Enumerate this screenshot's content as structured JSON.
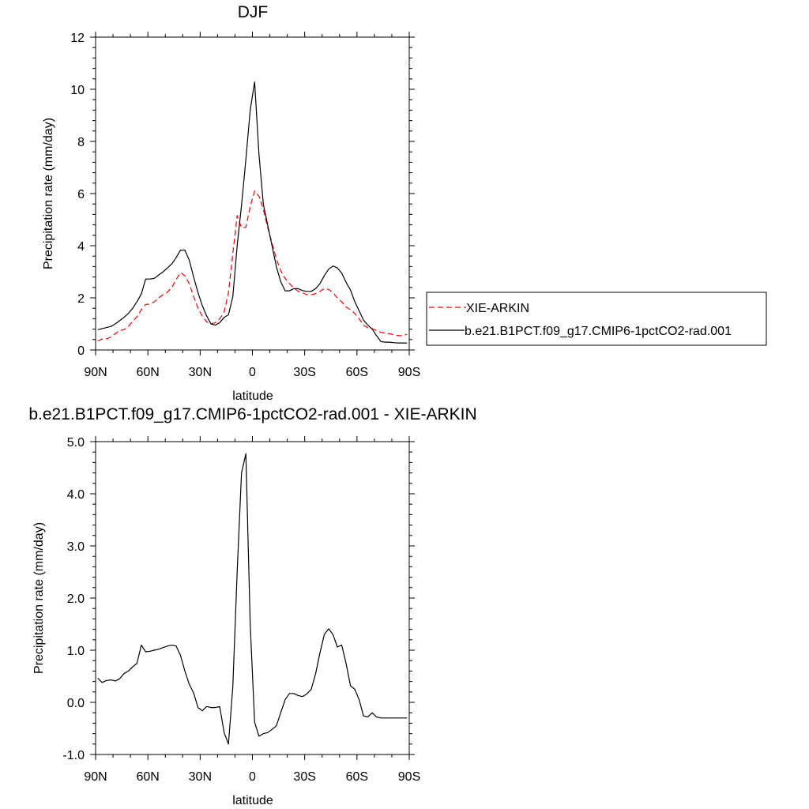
{
  "chart_data": [
    {
      "type": "line",
      "title": "DJF",
      "xlabel": "latitude",
      "ylabel": "Precipitation rate (mm/day)",
      "xlim": [
        90,
        -90
      ],
      "ylim": [
        0,
        12
      ],
      "x_ticks": [
        90,
        60,
        30,
        0,
        -30,
        -60,
        -90
      ],
      "x_tick_labels": [
        "90N",
        "60N",
        "30N",
        "0",
        "30S",
        "60S",
        "90S"
      ],
      "y_ticks": [
        0,
        2,
        4,
        6,
        8,
        10,
        12
      ],
      "y_tick_labels": [
        "0",
        "2",
        "4",
        "6",
        "8",
        "10",
        "12"
      ],
      "grid": false,
      "legend_position": "outside-right",
      "series": [
        {
          "name": "XIE-ARKIN",
          "color": "#ff0000",
          "dash": "dashed",
          "x": [
            88.75,
            86.25,
            83.75,
            81.25,
            78.75,
            76.25,
            73.75,
            71.25,
            68.75,
            66.25,
            63.75,
            61.25,
            58.75,
            56.25,
            53.75,
            51.25,
            48.75,
            46.25,
            43.75,
            41.25,
            38.75,
            36.25,
            33.75,
            31.25,
            28.75,
            26.25,
            23.75,
            21.25,
            18.75,
            16.25,
            13.75,
            11.25,
            8.75,
            6.25,
            3.75,
            1.25,
            -1.25,
            -3.75,
            -6.25,
            -8.75,
            -11.25,
            -13.75,
            -16.25,
            -18.75,
            -21.25,
            -23.75,
            -26.25,
            -28.75,
            -31.25,
            -33.75,
            -36.25,
            -38.75,
            -41.25,
            -43.75,
            -46.25,
            -48.75,
            -51.25,
            -53.75,
            -56.25,
            -58.75,
            -61.25,
            -63.75,
            -66.25,
            -68.75,
            -71.25,
            -73.75,
            -76.25,
            -78.75,
            -81.25,
            -83.75,
            -86.25,
            -88.75
          ],
          "values": [
            0.34,
            0.42,
            0.42,
            0.5,
            0.62,
            0.75,
            0.78,
            0.9,
            1.1,
            1.28,
            1.55,
            1.75,
            1.76,
            1.85,
            2.0,
            2.12,
            2.22,
            2.4,
            2.7,
            2.97,
            2.85,
            2.55,
            2.05,
            1.6,
            1.3,
            1.08,
            1.0,
            1.05,
            1.2,
            1.45,
            2.2,
            3.7,
            5.15,
            4.7,
            4.7,
            5.5,
            6.1,
            5.9,
            5.4,
            4.7,
            4.1,
            3.5,
            3.05,
            2.75,
            2.55,
            2.38,
            2.25,
            2.2,
            2.12,
            2.12,
            2.16,
            2.25,
            2.36,
            2.32,
            2.2,
            2.0,
            1.85,
            1.65,
            1.55,
            1.4,
            1.2,
            0.95,
            0.85,
            0.82,
            0.75,
            0.68,
            0.65,
            0.62,
            0.58,
            0.55,
            0.55,
            0.6
          ]
        },
        {
          "name": "b.e21.B1PCT.f09_g17.CMIP6-1pctCO2-rad.001",
          "color": "#000000",
          "dash": "solid",
          "x": [
            88.75,
            86.25,
            83.75,
            81.25,
            78.75,
            76.25,
            73.75,
            71.25,
            68.75,
            66.25,
            63.75,
            61.25,
            58.75,
            56.25,
            53.75,
            51.25,
            48.75,
            46.25,
            43.75,
            41.25,
            38.75,
            36.25,
            33.75,
            31.25,
            28.75,
            26.25,
            23.75,
            21.25,
            18.75,
            16.25,
            13.75,
            11.25,
            8.75,
            6.25,
            3.75,
            1.25,
            -1.25,
            -3.75,
            -6.25,
            -8.75,
            -11.25,
            -13.75,
            -16.25,
            -18.75,
            -21.25,
            -23.75,
            -26.25,
            -28.75,
            -31.25,
            -33.75,
            -36.25,
            -38.75,
            -41.25,
            -43.75,
            -46.25,
            -48.75,
            -51.25,
            -53.75,
            -56.25,
            -58.75,
            -61.25,
            -63.75,
            -66.25,
            -68.75,
            -71.25,
            -73.75,
            -76.25,
            -78.75,
            -81.25,
            -83.75,
            -86.25,
            -88.75
          ],
          "values": [
            0.78,
            0.82,
            0.86,
            0.9,
            1.0,
            1.12,
            1.25,
            1.4,
            1.6,
            1.85,
            2.15,
            2.72,
            2.72,
            2.75,
            2.88,
            3.0,
            3.15,
            3.3,
            3.55,
            3.83,
            3.83,
            3.45,
            2.8,
            2.2,
            1.7,
            1.3,
            1.0,
            0.95,
            1.05,
            1.25,
            1.35,
            2.05,
            4.0,
            5.55,
            7.3,
            9.2,
            10.28,
            7.5,
            5.6,
            4.8,
            4.0,
            3.2,
            2.62,
            2.27,
            2.27,
            2.35,
            2.35,
            2.28,
            2.25,
            2.25,
            2.35,
            2.55,
            2.85,
            3.1,
            3.22,
            3.15,
            2.95,
            2.6,
            2.3,
            1.85,
            1.5,
            1.15,
            0.95,
            0.8,
            0.55,
            0.32,
            0.3,
            0.3,
            0.28,
            0.27,
            0.27,
            0.27
          ]
        }
      ]
    },
    {
      "type": "line",
      "title": "b.e21.B1PCT.f09_g17.CMIP6-1pctCO2-rad.001 - XIE-ARKIN",
      "xlabel": "latitude",
      "ylabel": "Precipitation rate (mm/day)",
      "xlim": [
        90,
        -90
      ],
      "ylim": [
        -1.0,
        5.0
      ],
      "x_ticks": [
        90,
        60,
        30,
        0,
        -30,
        -60,
        -90
      ],
      "x_tick_labels": [
        "90N",
        "60N",
        "30N",
        "0",
        "30S",
        "60S",
        "90S"
      ],
      "y_ticks": [
        -1,
        0,
        1,
        2,
        3,
        4,
        5
      ],
      "y_tick_labels": [
        "-1.0",
        "0.0",
        "1.0",
        "2.0",
        "3.0",
        "4.0",
        "5.0"
      ],
      "grid": false,
      "series": [
        {
          "color": "#000000",
          "dash": "solid",
          "x": [
            88.75,
            86.25,
            83.75,
            81.25,
            78.75,
            76.25,
            73.75,
            71.25,
            68.75,
            66.25,
            63.75,
            61.25,
            58.75,
            56.25,
            53.75,
            51.25,
            48.75,
            46.25,
            43.75,
            41.25,
            38.75,
            36.25,
            33.75,
            31.25,
            28.75,
            26.25,
            23.75,
            21.25,
            18.75,
            16.25,
            13.75,
            11.25,
            8.75,
            6.25,
            3.75,
            1.25,
            -1.25,
            -3.75,
            -6.25,
            -8.75,
            -11.25,
            -13.75,
            -16.25,
            -18.75,
            -21.25,
            -23.75,
            -26.25,
            -28.75,
            -31.25,
            -33.75,
            -36.25,
            -38.75,
            -41.25,
            -43.75,
            -46.25,
            -48.75,
            -51.25,
            -53.75,
            -56.25,
            -58.75,
            -61.25,
            -63.75,
            -66.25,
            -68.75,
            -71.25,
            -73.75,
            -76.25,
            -78.75,
            -81.25,
            -83.75,
            -86.25,
            -88.75
          ],
          "values": [
            0.46,
            0.38,
            0.42,
            0.43,
            0.41,
            0.45,
            0.55,
            0.6,
            0.68,
            0.75,
            1.1,
            0.97,
            0.98,
            1.0,
            1.02,
            1.05,
            1.08,
            1.1,
            1.08,
            0.9,
            0.6,
            0.35,
            0.18,
            -0.1,
            -0.16,
            -0.08,
            -0.1,
            -0.1,
            -0.08,
            -0.58,
            -0.8,
            0.3,
            2.5,
            4.4,
            4.77,
            1.5,
            -0.38,
            -0.65,
            -0.6,
            -0.58,
            -0.52,
            -0.45,
            -0.2,
            0.05,
            0.17,
            0.17,
            0.13,
            0.11,
            0.16,
            0.25,
            0.55,
            0.95,
            1.3,
            1.41,
            1.3,
            1.06,
            1.1,
            0.75,
            0.32,
            0.25,
            0.05,
            -0.26,
            -0.28,
            -0.2,
            -0.28,
            -0.3,
            -0.3,
            -0.3,
            -0.3,
            -0.3,
            -0.3,
            -0.3
          ]
        }
      ]
    }
  ]
}
